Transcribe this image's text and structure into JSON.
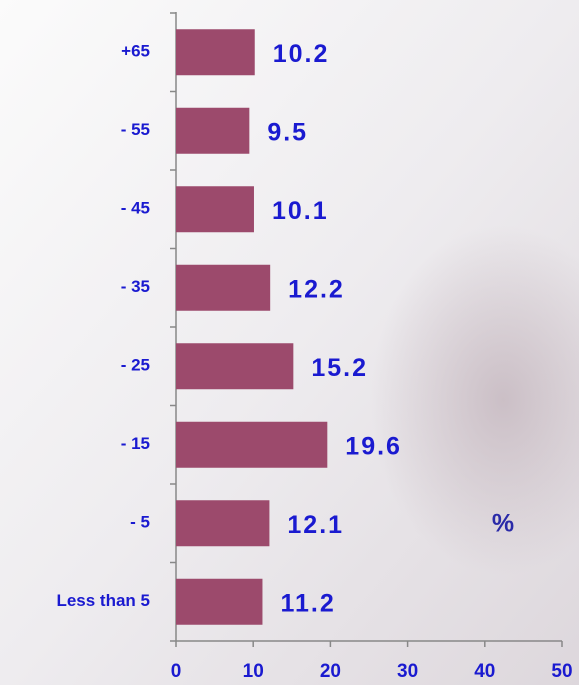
{
  "chart_data": {
    "type": "hbar",
    "categories": [
      "+65",
      "- 55",
      "- 45",
      "- 35",
      "- 25",
      "- 15",
      "- 5",
      "Less than 5"
    ],
    "values": [
      10.2,
      9.5,
      10.1,
      12.2,
      15.2,
      19.6,
      12.1,
      11.2
    ],
    "color": "#9c4a6c",
    "xlim": [
      0,
      50
    ],
    "xticks": [
      0,
      10,
      20,
      30,
      40,
      50
    ],
    "annotation": "%"
  }
}
